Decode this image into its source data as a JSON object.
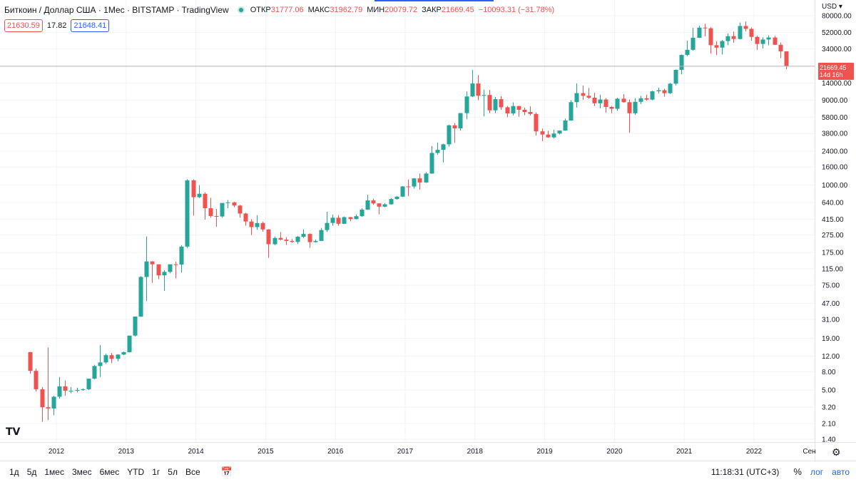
{
  "legend": {
    "symbol": "Биткоин / Доллар США · 1Мес · BITSTAMP · TradingView",
    "open_label": "ОТКР",
    "open": "31777.06",
    "high_label": "МАКС",
    "high": "31962.79",
    "low_label": "МИН",
    "low": "20079.72",
    "close_label": "ЗАКР",
    "close": "21669.45",
    "change": "−10093.31 (−31.78%)"
  },
  "prices": {
    "sell": "21630.59",
    "spread": "17.82",
    "buy": "21648.41"
  },
  "currency": "USD",
  "price_tag": {
    "price": "21669.45",
    "countdown": "14d 16h"
  },
  "colors": {
    "up": "#26a69a",
    "down": "#ef5350",
    "grid": "#f0f3fa",
    "axis_text": "#131722"
  },
  "bottom_bar": {
    "timeframes": [
      "1д",
      "5д",
      "1мес",
      "3мес",
      "6мес",
      "YTD",
      "1г",
      "5л",
      "Все"
    ],
    "time": "11:18:31 (UTC+3)",
    "percent": "%",
    "log": "лог",
    "auto": "авто"
  },
  "chart_data": {
    "type": "candlestick",
    "scale": "log",
    "y_ticks": [
      "80000.00",
      "52000.00",
      "34000.00",
      "14000.00",
      "9000.00",
      "5800.00",
      "3800.00",
      "2400.00",
      "1600.00",
      "1000.00",
      "640.00",
      "415.00",
      "275.00",
      "175.00",
      "115.00",
      "75.00",
      "47.00",
      "31.00",
      "19.00",
      "12.00",
      "8.00",
      "5.00",
      "3.20",
      "2.10",
      "1.40"
    ],
    "x_ticks": [
      "2012",
      "2013",
      "2014",
      "2015",
      "2016",
      "2017",
      "2018",
      "2019",
      "2020",
      "2021",
      "2022",
      "Сен"
    ],
    "candles": [
      {
        "t": "2011-08",
        "o": 13.3,
        "h": 13.4,
        "l": 7.6,
        "c": 8.2
      },
      {
        "t": "2011-09",
        "o": 8.2,
        "h": 8.7,
        "l": 4.8,
        "c": 5.1
      },
      {
        "t": "2011-10",
        "o": 5.1,
        "h": 5.4,
        "l": 2.2,
        "c": 3.2
      },
      {
        "t": "2011-11",
        "o": 3.2,
        "h": 15.0,
        "l": 2.3,
        "c": 3.1
      },
      {
        "t": "2011-12",
        "o": 3.1,
        "h": 4.3,
        "l": 2.6,
        "c": 4.2
      },
      {
        "t": "2012-01",
        "o": 4.2,
        "h": 7.0,
        "l": 4.0,
        "c": 5.5
      },
      {
        "t": "2012-02",
        "o": 5.5,
        "h": 6.4,
        "l": 4.3,
        "c": 4.9
      },
      {
        "t": "2012-03",
        "o": 4.9,
        "h": 5.4,
        "l": 4.6,
        "c": 4.9
      },
      {
        "t": "2012-04",
        "o": 4.9,
        "h": 5.3,
        "l": 4.7,
        "c": 5.0
      },
      {
        "t": "2012-05",
        "o": 5.0,
        "h": 5.2,
        "l": 4.9,
        "c": 5.1
      },
      {
        "t": "2012-06",
        "o": 5.1,
        "h": 6.7,
        "l": 5.0,
        "c": 6.7
      },
      {
        "t": "2012-07",
        "o": 6.7,
        "h": 9.6,
        "l": 6.6,
        "c": 9.3
      },
      {
        "t": "2012-08",
        "o": 9.3,
        "h": 16.0,
        "l": 7.0,
        "c": 10.2
      },
      {
        "t": "2012-09",
        "o": 10.2,
        "h": 12.8,
        "l": 9.8,
        "c": 12.3
      },
      {
        "t": "2012-10",
        "o": 12.3,
        "h": 13.0,
        "l": 10.0,
        "c": 11.2
      },
      {
        "t": "2012-11",
        "o": 11.2,
        "h": 12.6,
        "l": 10.5,
        "c": 12.5
      },
      {
        "t": "2012-12",
        "o": 12.5,
        "h": 13.5,
        "l": 12.3,
        "c": 13.3
      },
      {
        "t": "2013-01",
        "o": 13.3,
        "h": 20.4,
        "l": 13.2,
        "c": 20.4
      },
      {
        "t": "2013-02",
        "o": 20.4,
        "h": 33.4,
        "l": 19.9,
        "c": 33.4
      },
      {
        "t": "2013-03",
        "o": 33.4,
        "h": 95.0,
        "l": 33.1,
        "c": 93.0
      },
      {
        "t": "2013-04",
        "o": 93.0,
        "h": 266.0,
        "l": 50.0,
        "c": 139.0
      },
      {
        "t": "2013-05",
        "o": 139.0,
        "h": 140.0,
        "l": 80.0,
        "c": 129.0
      },
      {
        "t": "2013-06",
        "o": 129.0,
        "h": 129.0,
        "l": 88.0,
        "c": 97.0
      },
      {
        "t": "2013-07",
        "o": 97.0,
        "h": 111.0,
        "l": 65.0,
        "c": 106.0
      },
      {
        "t": "2013-08",
        "o": 106.0,
        "h": 128.0,
        "l": 102.0,
        "c": 129.0
      },
      {
        "t": "2013-09",
        "o": 129.0,
        "h": 138.0,
        "l": 90.0,
        "c": 128.0
      },
      {
        "t": "2013-10",
        "o": 128.0,
        "h": 212.0,
        "l": 104.0,
        "c": 204.0
      },
      {
        "t": "2013-11",
        "o": 204.0,
        "h": 1163.0,
        "l": 197.0,
        "c": 1130.0
      },
      {
        "t": "2013-12",
        "o": 1130.0,
        "h": 1163.0,
        "l": 455.0,
        "c": 732.0
      },
      {
        "t": "2014-01",
        "o": 732.0,
        "h": 1000.0,
        "l": 715.0,
        "c": 800.0
      },
      {
        "t": "2014-02",
        "o": 800.0,
        "h": 830.0,
        "l": 410.0,
        "c": 550.0
      },
      {
        "t": "2014-03",
        "o": 550.0,
        "h": 720.0,
        "l": 430.0,
        "c": 450.0
      },
      {
        "t": "2014-04",
        "o": 450.0,
        "h": 540.0,
        "l": 340.0,
        "c": 445.0
      },
      {
        "t": "2014-05",
        "o": 445.0,
        "h": 630.0,
        "l": 430.0,
        "c": 630.0
      },
      {
        "t": "2014-06",
        "o": 630.0,
        "h": 680.0,
        "l": 550.0,
        "c": 640.0
      },
      {
        "t": "2014-07",
        "o": 640.0,
        "h": 650.0,
        "l": 565.0,
        "c": 590.0
      },
      {
        "t": "2014-08",
        "o": 590.0,
        "h": 600.0,
        "l": 430.0,
        "c": 480.0
      },
      {
        "t": "2014-09",
        "o": 480.0,
        "h": 490.0,
        "l": 350.0,
        "c": 390.0
      },
      {
        "t": "2014-10",
        "o": 390.0,
        "h": 415.0,
        "l": 275.0,
        "c": 338.0
      },
      {
        "t": "2014-11",
        "o": 338.0,
        "h": 460.0,
        "l": 315.0,
        "c": 375.0
      },
      {
        "t": "2014-12",
        "o": 375.0,
        "h": 390.0,
        "l": 300.0,
        "c": 318.0
      },
      {
        "t": "2015-01",
        "o": 318.0,
        "h": 320.0,
        "l": 152.0,
        "c": 217.0
      },
      {
        "t": "2015-02",
        "o": 217.0,
        "h": 265.0,
        "l": 212.0,
        "c": 255.0
      },
      {
        "t": "2015-03",
        "o": 255.0,
        "h": 298.0,
        "l": 240.0,
        "c": 244.0
      },
      {
        "t": "2015-04",
        "o": 244.0,
        "h": 261.0,
        "l": 213.0,
        "c": 236.0
      },
      {
        "t": "2015-05",
        "o": 236.0,
        "h": 248.0,
        "l": 225.0,
        "c": 230.0
      },
      {
        "t": "2015-06",
        "o": 230.0,
        "h": 268.0,
        "l": 219.0,
        "c": 263.0
      },
      {
        "t": "2015-07",
        "o": 263.0,
        "h": 318.0,
        "l": 253.0,
        "c": 283.0
      },
      {
        "t": "2015-08",
        "o": 283.0,
        "h": 287.0,
        "l": 198.0,
        "c": 229.0
      },
      {
        "t": "2015-09",
        "o": 229.0,
        "h": 245.0,
        "l": 226.0,
        "c": 236.0
      },
      {
        "t": "2015-10",
        "o": 236.0,
        "h": 330.0,
        "l": 235.0,
        "c": 313.0
      },
      {
        "t": "2015-11",
        "o": 313.0,
        "h": 502.0,
        "l": 299.0,
        "c": 376.0
      },
      {
        "t": "2015-12",
        "o": 376.0,
        "h": 468.0,
        "l": 350.0,
        "c": 430.0
      },
      {
        "t": "2016-01",
        "o": 430.0,
        "h": 460.0,
        "l": 350.0,
        "c": 368.0
      },
      {
        "t": "2016-02",
        "o": 368.0,
        "h": 445.0,
        "l": 365.0,
        "c": 437.0
      },
      {
        "t": "2016-03",
        "o": 437.0,
        "h": 439.0,
        "l": 394.0,
        "c": 416.0
      },
      {
        "t": "2016-04",
        "o": 416.0,
        "h": 467.0,
        "l": 412.0,
        "c": 448.0
      },
      {
        "t": "2016-05",
        "o": 448.0,
        "h": 550.0,
        "l": 440.0,
        "c": 531.0
      },
      {
        "t": "2016-06",
        "o": 531.0,
        "h": 780.0,
        "l": 529.0,
        "c": 673.0
      },
      {
        "t": "2016-07",
        "o": 673.0,
        "h": 704.0,
        "l": 602.0,
        "c": 624.0
      },
      {
        "t": "2016-08",
        "o": 624.0,
        "h": 626.0,
        "l": 470.0,
        "c": 573.0
      },
      {
        "t": "2016-09",
        "o": 573.0,
        "h": 628.0,
        "l": 565.0,
        "c": 609.0
      },
      {
        "t": "2016-10",
        "o": 609.0,
        "h": 715.0,
        "l": 604.0,
        "c": 698.0
      },
      {
        "t": "2016-11",
        "o": 698.0,
        "h": 755.0,
        "l": 685.0,
        "c": 742.0
      },
      {
        "t": "2016-12",
        "o": 742.0,
        "h": 975.0,
        "l": 735.0,
        "c": 966.0
      },
      {
        "t": "2017-01",
        "o": 966.0,
        "h": 1158.0,
        "l": 751.0,
        "c": 965.0
      },
      {
        "t": "2017-02",
        "o": 965.0,
        "h": 1200.0,
        "l": 915.0,
        "c": 1190.0
      },
      {
        "t": "2017-03",
        "o": 1190.0,
        "h": 1350.0,
        "l": 890.0,
        "c": 1071.0
      },
      {
        "t": "2017-04",
        "o": 1071.0,
        "h": 1400.0,
        "l": 1060.0,
        "c": 1350.0
      },
      {
        "t": "2017-05",
        "o": 1350.0,
        "h": 2760.0,
        "l": 1340.0,
        "c": 2300.0
      },
      {
        "t": "2017-06",
        "o": 2300.0,
        "h": 3000.0,
        "l": 2200.0,
        "c": 2490.0
      },
      {
        "t": "2017-07",
        "o": 2490.0,
        "h": 2920.0,
        "l": 1800.0,
        "c": 2875.0
      },
      {
        "t": "2017-08",
        "o": 2875.0,
        "h": 4750.0,
        "l": 2710.0,
        "c": 4700.0
      },
      {
        "t": "2017-09",
        "o": 4700.0,
        "h": 4980.0,
        "l": 2980.0,
        "c": 4340.0
      },
      {
        "t": "2017-10",
        "o": 4340.0,
        "h": 6470.0,
        "l": 4110.0,
        "c": 6440.0
      },
      {
        "t": "2017-11",
        "o": 6440.0,
        "h": 11300.0,
        "l": 5500.0,
        "c": 9900.0
      },
      {
        "t": "2017-12",
        "o": 9900.0,
        "h": 19666.0,
        "l": 9700.0,
        "c": 13860.0
      },
      {
        "t": "2018-01",
        "o": 13860.0,
        "h": 17200.0,
        "l": 9000.0,
        "c": 10100.0
      },
      {
        "t": "2018-02",
        "o": 10100.0,
        "h": 11800.0,
        "l": 5920.0,
        "c": 10300.0
      },
      {
        "t": "2018-03",
        "o": 10300.0,
        "h": 11700.0,
        "l": 6430.0,
        "c": 6920.0
      },
      {
        "t": "2018-04",
        "o": 6920.0,
        "h": 9750.0,
        "l": 6430.0,
        "c": 9240.0
      },
      {
        "t": "2018-05",
        "o": 9240.0,
        "h": 9990.0,
        "l": 7030.0,
        "c": 7490.0
      },
      {
        "t": "2018-06",
        "o": 7490.0,
        "h": 7770.0,
        "l": 5780.0,
        "c": 6390.0
      },
      {
        "t": "2018-07",
        "o": 6390.0,
        "h": 8490.0,
        "l": 6070.0,
        "c": 7730.0
      },
      {
        "t": "2018-08",
        "o": 7730.0,
        "h": 7760.0,
        "l": 5880.0,
        "c": 7020.0
      },
      {
        "t": "2018-09",
        "o": 7020.0,
        "h": 7410.0,
        "l": 6120.0,
        "c": 6630.0
      },
      {
        "t": "2018-10",
        "o": 6630.0,
        "h": 7670.0,
        "l": 6050.0,
        "c": 6300.0
      },
      {
        "t": "2018-11",
        "o": 6300.0,
        "h": 6540.0,
        "l": 3600.0,
        "c": 4020.0
      },
      {
        "t": "2018-12",
        "o": 4020.0,
        "h": 4320.0,
        "l": 3120.0,
        "c": 3700.0
      },
      {
        "t": "2019-01",
        "o": 3700.0,
        "h": 4070.0,
        "l": 3400.0,
        "c": 3440.0
      },
      {
        "t": "2019-02",
        "o": 3440.0,
        "h": 4200.0,
        "l": 3350.0,
        "c": 3800.0
      },
      {
        "t": "2019-03",
        "o": 3800.0,
        "h": 4110.0,
        "l": 3700.0,
        "c": 4100.0
      },
      {
        "t": "2019-04",
        "o": 4100.0,
        "h": 5600.0,
        "l": 4080.0,
        "c": 5320.0
      },
      {
        "t": "2019-05",
        "o": 5320.0,
        "h": 9000.0,
        "l": 5300.0,
        "c": 8550.0
      },
      {
        "t": "2019-06",
        "o": 8550.0,
        "h": 13880.0,
        "l": 7440.0,
        "c": 10800.0
      },
      {
        "t": "2019-07",
        "o": 10800.0,
        "h": 13200.0,
        "l": 9100.0,
        "c": 10080.0
      },
      {
        "t": "2019-08",
        "o": 10080.0,
        "h": 12300.0,
        "l": 9350.0,
        "c": 9600.0
      },
      {
        "t": "2019-09",
        "o": 9600.0,
        "h": 10930.0,
        "l": 7730.0,
        "c": 8300.0
      },
      {
        "t": "2019-10",
        "o": 8300.0,
        "h": 10370.0,
        "l": 7300.0,
        "c": 9150.0
      },
      {
        "t": "2019-11",
        "o": 9150.0,
        "h": 9510.0,
        "l": 6520.0,
        "c": 7550.0
      },
      {
        "t": "2019-12",
        "o": 7550.0,
        "h": 7750.0,
        "l": 6430.0,
        "c": 7200.0
      },
      {
        "t": "2020-01",
        "o": 7200.0,
        "h": 9580.0,
        "l": 6850.0,
        "c": 9350.0
      },
      {
        "t": "2020-02",
        "o": 9350.0,
        "h": 10500.0,
        "l": 8450.0,
        "c": 8540.0
      },
      {
        "t": "2020-03",
        "o": 8540.0,
        "h": 9190.0,
        "l": 3860.0,
        "c": 6420.0
      },
      {
        "t": "2020-04",
        "o": 6420.0,
        "h": 9460.0,
        "l": 6150.0,
        "c": 8630.0
      },
      {
        "t": "2020-05",
        "o": 8630.0,
        "h": 10070.0,
        "l": 8130.0,
        "c": 9450.0
      },
      {
        "t": "2020-06",
        "o": 9450.0,
        "h": 10380.0,
        "l": 8900.0,
        "c": 9130.0
      },
      {
        "t": "2020-07",
        "o": 9130.0,
        "h": 11450.0,
        "l": 8990.0,
        "c": 11320.0
      },
      {
        "t": "2020-08",
        "o": 11320.0,
        "h": 12470.0,
        "l": 10700.0,
        "c": 11630.0
      },
      {
        "t": "2020-09",
        "o": 11630.0,
        "h": 12060.0,
        "l": 9850.0,
        "c": 10780.0
      },
      {
        "t": "2020-10",
        "o": 10780.0,
        "h": 14100.0,
        "l": 10540.0,
        "c": 13780.0
      },
      {
        "t": "2020-11",
        "o": 13780.0,
        "h": 19890.0,
        "l": 13200.0,
        "c": 19700.0
      },
      {
        "t": "2020-12",
        "o": 19700.0,
        "h": 29300.0,
        "l": 17570.0,
        "c": 28990.0
      },
      {
        "t": "2021-01",
        "o": 28990.0,
        "h": 41950.0,
        "l": 28150.0,
        "c": 33110.0
      },
      {
        "t": "2021-02",
        "o": 33110.0,
        "h": 58350.0,
        "l": 32300.0,
        "c": 45180.0
      },
      {
        "t": "2021-03",
        "o": 45180.0,
        "h": 61790.0,
        "l": 44950.0,
        "c": 58740.0
      },
      {
        "t": "2021-04",
        "o": 58740.0,
        "h": 64850.0,
        "l": 47000.0,
        "c": 57720.0
      },
      {
        "t": "2021-05",
        "o": 57720.0,
        "h": 59600.0,
        "l": 30000.0,
        "c": 37300.0
      },
      {
        "t": "2021-06",
        "o": 37300.0,
        "h": 41300.0,
        "l": 28800.0,
        "c": 35040.0
      },
      {
        "t": "2021-07",
        "o": 35040.0,
        "h": 42600.0,
        "l": 29300.0,
        "c": 41500.0
      },
      {
        "t": "2021-08",
        "o": 41500.0,
        "h": 50500.0,
        "l": 37400.0,
        "c": 47100.0
      },
      {
        "t": "2021-09",
        "o": 47100.0,
        "h": 52900.0,
        "l": 39600.0,
        "c": 43800.0
      },
      {
        "t": "2021-10",
        "o": 43800.0,
        "h": 66950.0,
        "l": 43300.0,
        "c": 61300.0
      },
      {
        "t": "2021-11",
        "o": 61300.0,
        "h": 69000.0,
        "l": 53300.0,
        "c": 56900.0
      },
      {
        "t": "2021-12",
        "o": 56900.0,
        "h": 59000.0,
        "l": 42000.0,
        "c": 46200.0
      },
      {
        "t": "2022-01",
        "o": 46200.0,
        "h": 47900.0,
        "l": 33000.0,
        "c": 38500.0
      },
      {
        "t": "2022-02",
        "o": 38500.0,
        "h": 45800.0,
        "l": 34300.0,
        "c": 43200.0
      },
      {
        "t": "2022-03",
        "o": 43200.0,
        "h": 48200.0,
        "l": 37200.0,
        "c": 45500.0
      },
      {
        "t": "2022-04",
        "o": 45500.0,
        "h": 47400.0,
        "l": 37600.0,
        "c": 37700.0
      },
      {
        "t": "2022-05",
        "o": 37700.0,
        "h": 40000.0,
        "l": 26700.0,
        "c": 31770.0
      },
      {
        "t": "2022-06",
        "o": 31777.06,
        "h": 31962.79,
        "l": 20079.72,
        "c": 21669.45
      }
    ]
  }
}
